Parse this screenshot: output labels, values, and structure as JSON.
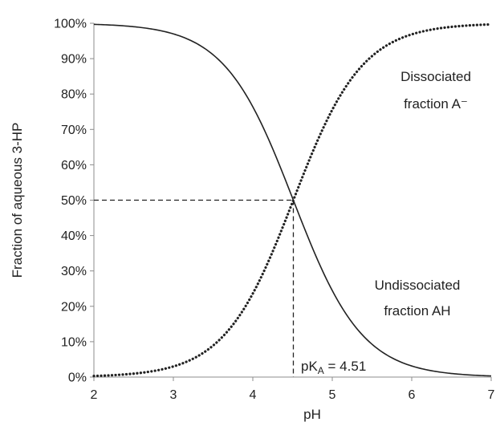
{
  "chart_data": {
    "type": "line",
    "title": "",
    "xlabel": "pH",
    "ylabel": "Fraction of aqueous 3-HP",
    "xlim": [
      2,
      7
    ],
    "ylim": [
      0,
      1
    ],
    "x_ticks": [
      "2",
      "3",
      "4",
      "5",
      "6",
      "7"
    ],
    "y_ticks": [
      "0%",
      "10%",
      "20%",
      "30%",
      "40%",
      "50%",
      "60%",
      "70%",
      "80%",
      "90%",
      "100%"
    ],
    "pKa": 4.51,
    "grid": false,
    "series": [
      {
        "style": "solid",
        "color": "#222222",
        "x": [
          2.0,
          2.5,
          3.0,
          3.5,
          4.0,
          4.25,
          4.51,
          4.75,
          5.0,
          5.5,
          6.0,
          6.5,
          7.0
        ],
        "values": [
          0.997,
          0.99,
          0.97,
          0.911,
          0.764,
          0.645,
          0.5,
          0.365,
          0.244,
          0.093,
          0.031,
          0.01,
          0.003
        ]
      },
      {
        "style": "dotted",
        "color": "#222222",
        "x": [
          2.0,
          2.5,
          3.0,
          3.5,
          4.0,
          4.25,
          4.51,
          4.75,
          5.0,
          5.5,
          6.0,
          6.5,
          7.0
        ],
        "values": [
          0.003,
          0.01,
          0.03,
          0.089,
          0.236,
          0.355,
          0.5,
          0.635,
          0.756,
          0.907,
          0.969,
          0.99,
          0.997
        ]
      }
    ],
    "annotations": [
      {
        "name": "dissociated",
        "lines": [
          "Dissociated",
          "fraction A⁻"
        ]
      },
      {
        "name": "undissociated",
        "lines": [
          "Undissociated",
          "fraction AH"
        ]
      },
      {
        "name": "pka",
        "prefix": "pK",
        "sub": "A",
        "suffix": " = 4.51"
      }
    ],
    "reference_lines": [
      {
        "type": "horizontal",
        "y": 0.5,
        "x_to": 4.51,
        "style": "dashed"
      },
      {
        "type": "vertical",
        "x": 4.51,
        "y_to": 0.5,
        "style": "dashed"
      }
    ]
  }
}
